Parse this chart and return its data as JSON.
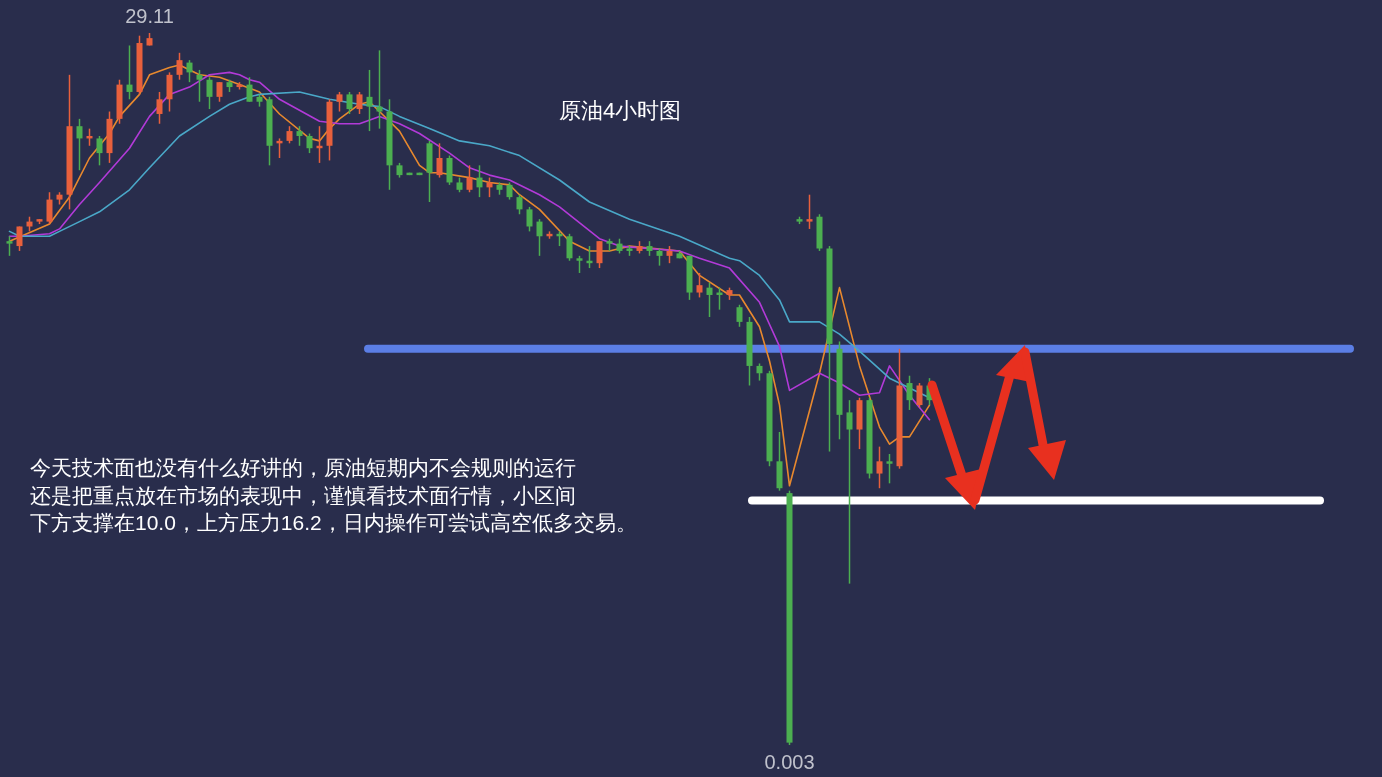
{
  "chart_data": {
    "type": "candlestick",
    "title": "原油4小时图",
    "categories": [
      null,
      null,
      null,
      null,
      null,
      null,
      null,
      null,
      null,
      null,
      null,
      null,
      null,
      null,
      null,
      null,
      null,
      null,
      null,
      null,
      null,
      null,
      null,
      null,
      null,
      null,
      null,
      null,
      null,
      null,
      null,
      null,
      null,
      null,
      null,
      null,
      null,
      null,
      null,
      null,
      null,
      null,
      null,
      null,
      null,
      null,
      null,
      null,
      null,
      null,
      null,
      null,
      null,
      null,
      null,
      null,
      null,
      null,
      null,
      null,
      null,
      null,
      null,
      null,
      null,
      null,
      null,
      null,
      null,
      null,
      null,
      null,
      null,
      null,
      null,
      null,
      null,
      null,
      null,
      null,
      null,
      null,
      null,
      null,
      null,
      null,
      null,
      null,
      null,
      null,
      null,
      null,
      null
    ],
    "ohlc": [
      [
        20.6,
        20.8,
        20.0,
        20.5
      ],
      [
        20.4,
        21.2,
        20.2,
        21.2
      ],
      [
        21.2,
        21.6,
        21.0,
        21.4
      ],
      [
        21.4,
        21.5,
        21.3,
        21.5
      ],
      [
        21.4,
        22.6,
        21.3,
        22.3
      ],
      [
        22.3,
        22.6,
        22.1,
        22.5
      ],
      [
        22.5,
        27.4,
        21.9,
        25.3
      ],
      [
        25.3,
        25.6,
        23.5,
        24.8
      ],
      [
        24.8,
        25.2,
        24.5,
        24.9
      ],
      [
        24.8,
        24.9,
        23.7,
        24.2
      ],
      [
        24.2,
        25.9,
        23.8,
        25.6
      ],
      [
        25.6,
        27.2,
        25.4,
        27.0
      ],
      [
        27.0,
        28.6,
        26.4,
        26.7
      ],
      [
        26.7,
        29.0,
        26.6,
        28.7
      ],
      [
        28.6,
        29.11,
        28.6,
        28.9
      ],
      [
        25.8,
        26.7,
        25.4,
        26.4
      ],
      [
        26.4,
        27.5,
        25.9,
        27.4
      ],
      [
        27.4,
        28.3,
        27.2,
        28.0
      ],
      [
        27.9,
        28.0,
        27.1,
        27.5
      ],
      [
        27.4,
        27.6,
        26.3,
        27.2
      ],
      [
        27.2,
        27.3,
        26.0,
        26.5
      ],
      [
        26.5,
        27.1,
        26.3,
        27.1
      ],
      [
        27.1,
        27.2,
        26.7,
        26.9
      ],
      [
        26.9,
        27.1,
        26.8,
        27.0
      ],
      [
        27.0,
        27.3,
        26.3,
        26.3
      ],
      [
        26.5,
        26.6,
        26.1,
        26.3
      ],
      [
        26.4,
        26.5,
        23.7,
        24.5
      ],
      [
        24.6,
        24.8,
        24.0,
        24.7
      ],
      [
        24.7,
        25.3,
        24.6,
        25.1
      ],
      [
        25.1,
        25.3,
        24.5,
        24.9
      ],
      [
        24.9,
        25.0,
        24.2,
        24.4
      ],
      [
        24.4,
        25.3,
        23.8,
        24.5
      ],
      [
        24.5,
        26.4,
        23.9,
        26.3
      ],
      [
        26.3,
        26.7,
        25.9,
        26.6
      ],
      [
        26.6,
        26.7,
        25.8,
        26.0
      ],
      [
        26.0,
        26.7,
        25.8,
        26.6
      ],
      [
        26.5,
        27.6,
        25.1,
        26.1
      ],
      [
        26.1,
        28.4,
        25.2,
        25.9
      ],
      [
        25.9,
        26.4,
        22.7,
        23.7
      ],
      [
        23.7,
        23.8,
        23.2,
        23.3
      ],
      [
        23.4,
        23.4,
        23.3,
        23.3
      ],
      [
        23.4,
        23.4,
        23.3,
        23.3
      ],
      [
        24.6,
        24.7,
        22.2,
        23.4
      ],
      [
        23.3,
        24.6,
        23.2,
        24.0
      ],
      [
        24.0,
        24.1,
        22.9,
        23.0
      ],
      [
        23.0,
        23.2,
        22.6,
        22.7
      ],
      [
        22.7,
        23.7,
        22.6,
        23.2
      ],
      [
        23.2,
        23.7,
        22.4,
        22.8
      ],
      [
        22.8,
        23.2,
        22.4,
        23.0
      ],
      [
        22.9,
        23.0,
        22.5,
        22.7
      ],
      [
        22.9,
        23.0,
        22.3,
        22.4
      ],
      [
        22.4,
        22.5,
        21.7,
        21.9
      ],
      [
        21.9,
        22.0,
        21.0,
        21.2
      ],
      [
        21.4,
        21.5,
        20.0,
        20.8
      ],
      [
        20.8,
        21.0,
        20.7,
        20.9
      ],
      [
        20.9,
        21.0,
        20.4,
        20.8
      ],
      [
        20.8,
        20.9,
        19.8,
        19.9
      ],
      [
        19.9,
        20.0,
        19.3,
        19.8
      ],
      [
        19.8,
        20.4,
        19.5,
        19.7
      ],
      [
        19.7,
        20.6,
        19.5,
        20.6
      ],
      [
        20.6,
        20.7,
        20.2,
        20.5
      ],
      [
        20.5,
        20.7,
        20.1,
        20.2
      ],
      [
        20.3,
        20.4,
        20.0,
        20.2
      ],
      [
        20.2,
        20.6,
        20.1,
        20.4
      ],
      [
        20.4,
        20.6,
        20.0,
        20.2
      ],
      [
        20.2,
        20.3,
        19.6,
        20.0
      ],
      [
        20.0,
        20.4,
        19.7,
        20.2
      ],
      [
        20.1,
        20.2,
        19.9,
        19.9
      ],
      [
        20.0,
        20.0,
        18.2,
        18.5
      ],
      [
        18.5,
        19.3,
        18.3,
        18.8
      ],
      [
        18.7,
        18.9,
        17.5,
        18.4
      ],
      [
        18.5,
        18.7,
        17.8,
        18.4
      ],
      [
        18.4,
        18.7,
        18.2,
        18.6
      ],
      [
        17.9,
        18.0,
        17.1,
        17.3
      ],
      [
        17.3,
        17.5,
        14.7,
        15.5
      ],
      [
        15.5,
        15.6,
        14.9,
        15.2
      ],
      [
        15.2,
        15.3,
        11.4,
        11.6
      ],
      [
        11.6,
        12.8,
        10.4,
        10.5
      ],
      [
        10.3,
        10.4,
        0.003,
        0.1
      ],
      [
        21.5,
        21.6,
        21.3,
        21.4
      ],
      [
        21.4,
        22.5,
        21.1,
        21.5
      ],
      [
        21.6,
        21.7,
        20.2,
        20.3
      ],
      [
        20.3,
        20.4,
        12.0,
        16.4
      ],
      [
        16.2,
        16.5,
        12.5,
        13.5
      ],
      [
        13.6,
        14.1,
        6.6,
        12.9
      ],
      [
        12.9,
        14.2,
        12.1,
        14.1
      ],
      [
        14.1,
        14.2,
        10.9,
        11.1
      ],
      [
        11.1,
        12.2,
        10.5,
        11.6
      ],
      [
        11.6,
        11.9,
        10.7,
        11.5
      ],
      [
        11.4,
        16.2,
        11.3,
        14.7
      ],
      [
        14.8,
        15.1,
        13.7,
        14.1
      ],
      [
        13.9,
        14.8,
        13.8,
        14.7
      ],
      [
        14.7,
        15.0,
        13.9,
        14.1
      ]
    ],
    "series": [
      {
        "type": "line",
        "color": "#e8892e",
        "values": [
          20.6,
          null,
          null,
          null,
          21.3,
          null,
          22.4,
          null,
          24.0,
          null,
          25.0,
          25.7,
          null,
          26.6,
          27.4,
          null,
          27.7,
          27.8,
          null,
          27.4,
          null,
          27.3,
          null,
          27.0,
          null,
          26.7,
          null,
          25.8,
          null,
          null,
          24.8,
          24.7,
          25.2,
          25.6,
          null,
          26.2,
          26.3,
          25.9,
          null,
          25.1,
          null,
          23.7,
          23.4,
          23.4,
          null,
          null,
          23.2,
          null,
          23.0,
          null,
          22.9,
          22.5,
          null,
          21.9,
          null,
          null,
          20.6,
          null,
          20.2,
          null,
          20.2,
          null,
          20.4,
          null,
          null,
          null,
          null,
          20.2,
          null,
          19.2,
          null,
          null,
          18.4,
          18.4,
          null,
          17.1,
          15.7,
          13.9,
          10.6,
          null,
          null,
          15.2,
          null,
          18.7,
          null,
          15.5,
          null,
          13.0,
          12.3,
          12.6,
          12.6,
          null,
          13.9
        ]
      },
      {
        "type": "line",
        "color": "#b23ad8",
        "values": [
          20.8,
          20.8,
          null,
          null,
          20.9,
          21.1,
          null,
          22.1,
          null,
          23.0,
          null,
          null,
          24.4,
          null,
          25.7,
          null,
          26.6,
          null,
          26.9,
          null,
          27.4,
          null,
          27.5,
          27.4,
          27.2,
          27.1,
          null,
          26.4,
          null,
          null,
          null,
          25.5,
          null,
          25.4,
          null,
          25.4,
          null,
          25.7,
          null,
          25.4,
          null,
          25.0,
          null,
          null,
          24.2,
          null,
          23.6,
          null,
          23.3,
          null,
          23.1,
          null,
          null,
          22.5,
          null,
          22.0,
          null,
          null,
          null,
          20.7,
          null,
          20.4,
          null,
          null,
          null,
          null,
          null,
          20.2,
          null,
          19.9,
          null,
          null,
          19.5,
          null,
          null,
          18.1,
          null,
          16.3,
          14.5,
          null,
          null,
          15.2,
          null,
          14.8,
          null,
          14.3,
          null,
          14.4,
          15.5,
          null,
          14.3,
          null,
          13.3
        ]
      },
      {
        "type": "line",
        "color": "#4aa8c8",
        "values": [
          21.0,
          20.8,
          null,
          null,
          20.8,
          21.0,
          null,
          21.4,
          null,
          21.8,
          null,
          null,
          22.7,
          null,
          23.6,
          null,
          null,
          24.9,
          null,
          null,
          25.7,
          null,
          26.2,
          null,
          26.5,
          26.6,
          null,
          null,
          null,
          26.7,
          null,
          null,
          26.4,
          null,
          null,
          26.2,
          null,
          26.1,
          null,
          25.7,
          null,
          null,
          25.2,
          null,
          null,
          24.7,
          null,
          null,
          24.5,
          null,
          null,
          24.1,
          null,
          null,
          null,
          23.1,
          null,
          null,
          22.2,
          null,
          null,
          null,
          21.5,
          null,
          null,
          null,
          null,
          20.8,
          null,
          null,
          null,
          null,
          19.9,
          19.8,
          null,
          19.2,
          null,
          18.2,
          17.3,
          null,
          null,
          17.3,
          null,
          16.8,
          null,
          16.1,
          null,
          null,
          15.0,
          null,
          null,
          null,
          14.2
        ]
      }
    ],
    "ref_lines": [
      {
        "axis": "y",
        "value": 16.2,
        "color": "#5b7ee5"
      },
      {
        "axis": "y",
        "value": 10.0,
        "color": "#ffffff"
      }
    ],
    "annotations": [
      {
        "text": "29.11",
        "y": 29.11
      },
      {
        "text": "0.003",
        "y": 0.003
      },
      "今天技术面也没有什么好讲的，原油短期内不会规则的运行",
      "还是把重点放在市场的表现中，谨慎看技术面行情，小区间",
      "下方支撑在10.0，上方压力16.2，日内操作可尝试高空低多交易。"
    ]
  }
}
